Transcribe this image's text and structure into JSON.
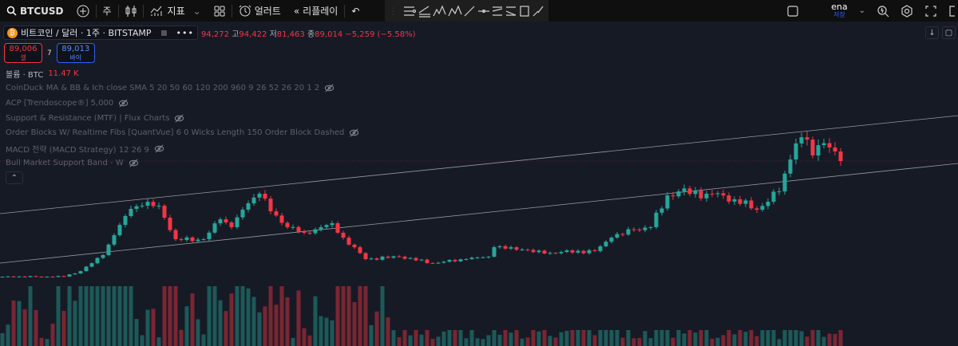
{
  "toolbar": {
    "symbol": "BTCUSD",
    "interval": "주",
    "indicators": "지표",
    "alert": "얼러트",
    "replay": "리플레이",
    "layout_name": "ena",
    "save_label": "저장"
  },
  "legend": {
    "title": "비트코인 / 달러 · 1주 · BITSTAMP",
    "open": "94,272",
    "high_label": "고",
    "high": "94,422",
    "low_label": "저",
    "low": "81,463",
    "close_label": "종",
    "close": "89,014",
    "change": "−5,259 (−5.58%)"
  },
  "trade": {
    "sell_price": "89,006",
    "sell_label": "셀",
    "spread": "7",
    "buy_price": "89,013",
    "buy_label": "바이"
  },
  "volume": {
    "label": "볼륨 · BTC",
    "value": "11.47 K"
  },
  "indicators": [
    "CoinDuck MA & BB & Ich close SMA 5 20 50 60 120 200 960 9 26 52 26 20 1 2",
    "ACP [Trendoscope®] 5,000",
    "Support & Resistance (MTF) | Flux Charts",
    "Order Blocks W/ Realtime Fibs [QuantVue] 6 0 Wicks Length 150 Order Block Dashed",
    "MACD 전략 (MACD Strategy) 12 26 9",
    "Bull Market Support Band - W"
  ],
  "colors": {
    "up": "#26a69a",
    "down": "#f23645",
    "background": "#161a25",
    "accent": "#2962ff"
  },
  "chart_data": {
    "type": "candlestick",
    "interval": "1W",
    "exchange": "BITSTAMP",
    "last_price": 89014,
    "anchors": [
      {
        "bar": 0,
        "close": 8200
      },
      {
        "bar": 11,
        "close": 8300
      },
      {
        "bar": 14,
        "close": 12100
      },
      {
        "bar": 18,
        "close": 23300
      },
      {
        "bar": 20,
        "close": 37200
      },
      {
        "bar": 23,
        "close": 55600
      },
      {
        "bar": 25,
        "close": 57800
      },
      {
        "bar": 28,
        "close": 57800
      },
      {
        "bar": 31,
        "close": 34400
      },
      {
        "bar": 36,
        "close": 34400
      },
      {
        "bar": 39,
        "close": 48300
      },
      {
        "bar": 41,
        "close": 42800
      },
      {
        "bar": 44,
        "close": 59500
      },
      {
        "bar": 46,
        "close": 66200
      },
      {
        "bar": 48,
        "close": 53900
      },
      {
        "bar": 51,
        "close": 42800
      },
      {
        "bar": 54,
        "close": 38900
      },
      {
        "bar": 57,
        "close": 42800
      },
      {
        "bar": 59,
        "close": 45600
      },
      {
        "bar": 61,
        "close": 35500
      },
      {
        "bar": 65,
        "close": 20500
      },
      {
        "bar": 71,
        "close": 22200
      },
      {
        "bar": 77,
        "close": 17700
      },
      {
        "bar": 83,
        "close": 20500
      },
      {
        "bar": 87,
        "close": 22200
      },
      {
        "bar": 88,
        "close": 28800
      },
      {
        "bar": 93,
        "close": 27200
      },
      {
        "bar": 97,
        "close": 24400
      },
      {
        "bar": 100,
        "close": 25500
      },
      {
        "bar": 106,
        "close": 26100
      },
      {
        "bar": 109,
        "close": 35500
      },
      {
        "bar": 113,
        "close": 41100
      },
      {
        "bar": 116,
        "close": 42800
      },
      {
        "bar": 119,
        "close": 65000
      },
      {
        "bar": 121,
        "close": 67800
      },
      {
        "bar": 126,
        "close": 66200
      },
      {
        "bar": 129,
        "close": 65000
      },
      {
        "bar": 131,
        "close": 62300
      },
      {
        "bar": 135,
        "close": 55000
      },
      {
        "bar": 137,
        "close": 60600
      },
      {
        "bar": 139,
        "close": 67800
      },
      {
        "bar": 141,
        "close": 90100
      },
      {
        "bar": 142,
        "close": 101300
      },
      {
        "bar": 144,
        "close": 104000
      },
      {
        "bar": 145,
        "close": 92900
      },
      {
        "bar": 146,
        "close": 100100
      },
      {
        "bar": 148,
        "close": 98500
      },
      {
        "bar": 149,
        "close": 95700
      },
      {
        "bar": 150,
        "close": 89014
      }
    ]
  }
}
